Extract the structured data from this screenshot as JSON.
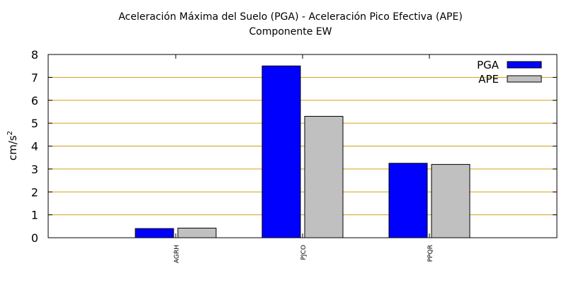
{
  "chart_data": {
    "type": "bar",
    "title": "Aceleración Máxima del Suelo (PGA) -  Aceleración Pico Efectiva (APE)",
    "subtitle": "Componente EW",
    "ylabel_base": "cm/s",
    "ylabel_exp": "2",
    "categories": [
      "AGRH",
      "PJCO",
      "PPQR"
    ],
    "series": [
      {
        "name": "PGA",
        "color": "#0000ff",
        "values": [
          0.4,
          7.5,
          3.25
        ]
      },
      {
        "name": "APE",
        "color": "#c0c0c0",
        "values": [
          0.42,
          5.3,
          3.2
        ]
      }
    ],
    "ylim": [
      0,
      8
    ],
    "yticks": [
      "0",
      "1",
      "2",
      "3",
      "4",
      "5",
      "6",
      "7",
      "8"
    ],
    "grid": true,
    "grid_color": "#d4a017",
    "legend_position": "top-right"
  }
}
